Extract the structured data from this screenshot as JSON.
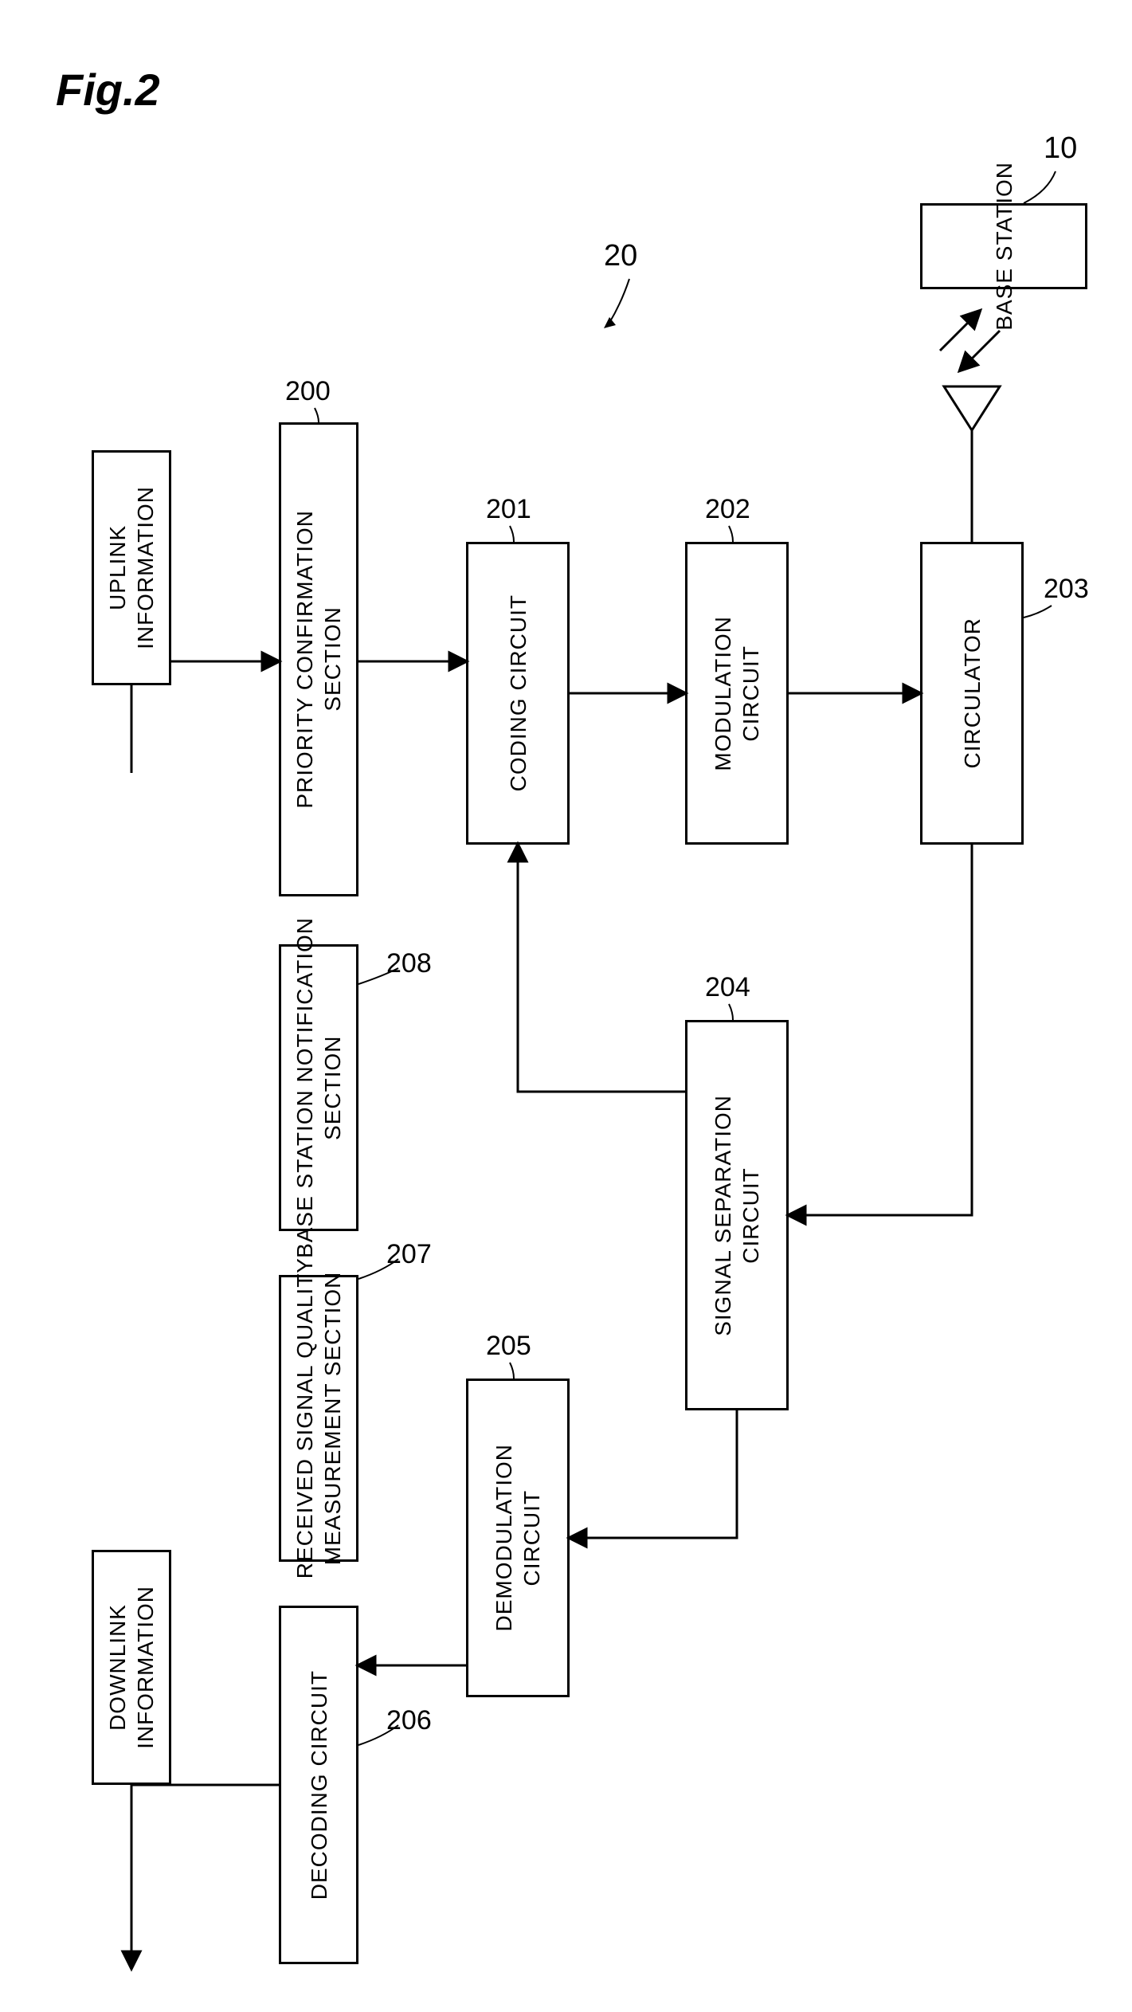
{
  "figure": {
    "title": "Fig.2",
    "title_fontsize": 56,
    "ref_20": "20",
    "ref_10": "10",
    "colors": {
      "stroke": "#000000",
      "bg": "#ffffff"
    }
  },
  "blocks": {
    "uplink_info": {
      "label": "UPLINK\nINFORMATION",
      "ref": ""
    },
    "downlink_info": {
      "label": "DOWNLINK\nINFORMATION",
      "ref": ""
    },
    "priority_confirmation": {
      "label": "PRIORITY CONFIRMATION\nSECTION",
      "ref": "200"
    },
    "base_station_notification": {
      "label": "BASE STATION NOTIFICATION\nSECTION",
      "ref": "208"
    },
    "received_signal_quality": {
      "label": "RECEIVED SIGNAL QUALITY\nMEASUREMENT SECTION",
      "ref": "207"
    },
    "decoding_circuit": {
      "label": "DECODING CIRCUIT",
      "ref": "206"
    },
    "coding_circuit": {
      "label": "CODING CIRCUIT",
      "ref": "201"
    },
    "demodulation_circuit": {
      "label": "DEMODULATION\nCIRCUIT",
      "ref": "205"
    },
    "modulation_circuit": {
      "label": "MODULATION\nCIRCUIT",
      "ref": "202"
    },
    "signal_separation_circuit": {
      "label": "SIGNAL SEPARATION\nCIRCUIT",
      "ref": "204"
    },
    "circulator": {
      "label": "CIRCULATOR",
      "ref": "203"
    },
    "base_station": {
      "label": "BASE STATION",
      "ref": ""
    }
  },
  "style": {
    "block_border_width": 3,
    "block_fontsize": 28,
    "label_fontsize": 34,
    "arrow_stroke_width": 3
  }
}
